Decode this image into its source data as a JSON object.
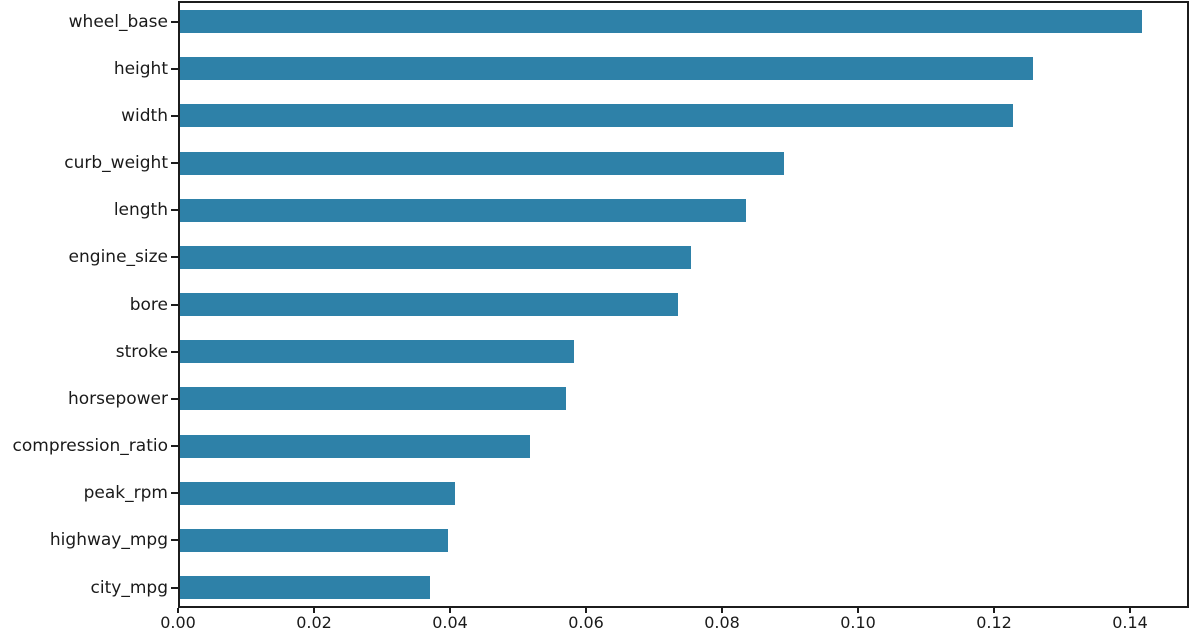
{
  "chart_data": {
    "type": "bar",
    "orientation": "horizontal",
    "title": "",
    "xlabel": "",
    "ylabel": "",
    "categories": [
      "wheel_base",
      "height",
      "width",
      "curb_weight",
      "length",
      "engine_size",
      "bore",
      "stroke",
      "horsepower",
      "compression_ratio",
      "peak_rpm",
      "highway_mpg",
      "city_mpg"
    ],
    "values": [
      0.1415,
      0.1254,
      0.1225,
      0.0888,
      0.0832,
      0.0751,
      0.0732,
      0.0579,
      0.0568,
      0.0515,
      0.0405,
      0.0394,
      0.0367
    ],
    "xticks": [
      {
        "value": 0.0,
        "label": "0.00"
      },
      {
        "value": 0.02,
        "label": "0.02"
      },
      {
        "value": 0.04,
        "label": "0.04"
      },
      {
        "value": 0.06,
        "label": "0.06"
      },
      {
        "value": 0.08,
        "label": "0.08"
      },
      {
        "value": 0.1,
        "label": "0.10"
      },
      {
        "value": 0.12,
        "label": "0.12"
      },
      {
        "value": 0.14,
        "label": "0.14"
      }
    ],
    "xlim": [
      0,
      0.1488
    ],
    "grid": false,
    "legend": null,
    "bar_color": "#2e81a8",
    "axis_color": "#1c1c1c",
    "text_color": "#1a1a1a",
    "background_color": "#ffffff"
  }
}
